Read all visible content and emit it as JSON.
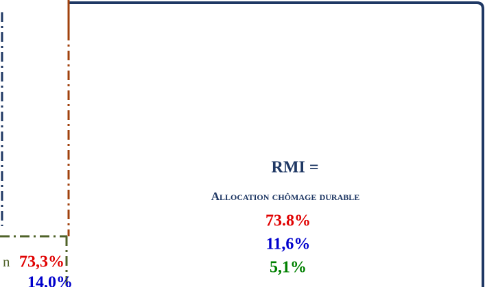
{
  "box": {
    "title": "RMI =",
    "subtitle": "Allocation chômage durable",
    "values": [
      "73.8%",
      "11,6%",
      "5,1%"
    ]
  },
  "left": {
    "fragment": "n",
    "values": [
      "73,3%",
      "14,0%"
    ]
  }
}
